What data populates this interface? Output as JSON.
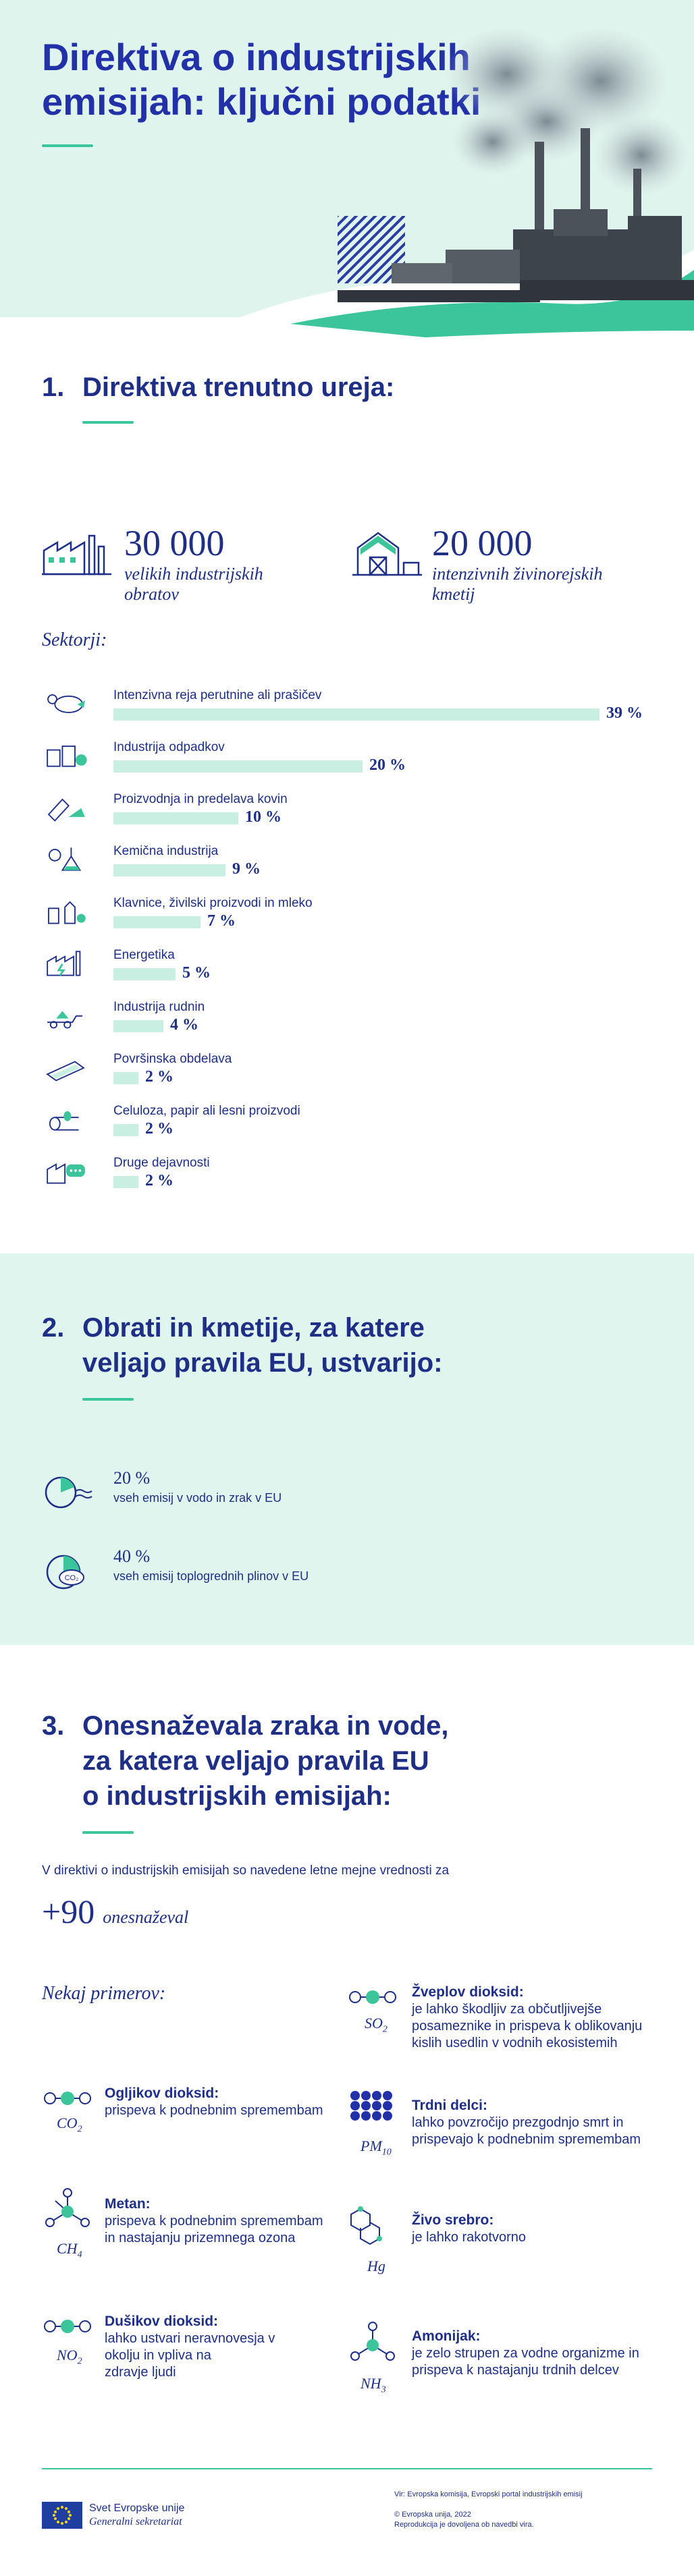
{
  "header": {
    "title_line1": "Direktiva o industrijskih",
    "title_line2": "emisijah: ključni podatki"
  },
  "section1": {
    "number": "1.",
    "heading": "Direktiva trenutno ureja:",
    "stat1": {
      "value": "30 000",
      "label_line1": "velikih industrijskih",
      "label_line2": "obratov",
      "icon": "factory-icon"
    },
    "stat2": {
      "value": "20 000",
      "label_line1": "intenzivnih živinorejskih",
      "label_line2": "kmetij",
      "icon": "barn-icon"
    },
    "sectors_title": "Sektorji:",
    "sectors": [
      {
        "label": "Intenzivna reja perutnine ali prašičev",
        "pct_text": "39 %",
        "value": 39,
        "icon": "livestock-icon"
      },
      {
        "label": "Industrija odpadkov",
        "pct_text": "20 %",
        "value": 20,
        "icon": "waste-icon"
      },
      {
        "label": "Proizvodnja in predelava kovin",
        "pct_text": "10 %",
        "value": 10,
        "icon": "metal-icon"
      },
      {
        "label": "Kemična industrija",
        "pct_text": "9 %",
        "value": 9,
        "icon": "chemistry-icon"
      },
      {
        "label": "Klavnice, živilski proizvodi in mleko",
        "pct_text": "7 %",
        "value": 7,
        "icon": "food-icon"
      },
      {
        "label": "Energetika",
        "pct_text": "5 %",
        "value": 5,
        "icon": "energy-icon"
      },
      {
        "label": "Industrija rudnin",
        "pct_text": "4 %",
        "value": 4,
        "icon": "mineral-icon"
      },
      {
        "label": "Površinska obdelava",
        "pct_text": "2 %",
        "value": 2,
        "icon": "surface-icon"
      },
      {
        "label": "Celuloza, papir ali lesni proizvodi",
        "pct_text": "2 %",
        "value": 2,
        "icon": "wood-icon"
      },
      {
        "label": "Druge dejavnosti",
        "pct_text": "2 %",
        "value": 2,
        "icon": "other-icon"
      }
    ]
  },
  "section2": {
    "number": "2.",
    "heading_line1": "Obrati in kmetije, za katere",
    "heading_line2": "veljajo pravila EU, ustvarijo:",
    "items": [
      {
        "pct": "20 %",
        "text": "vseh emisij v vodo in zrak v EU",
        "value": 20,
        "icon": "emissions-pie-icon"
      },
      {
        "pct": "40 %",
        "text": "vseh emisij toplogrednih plinov v EU",
        "value": 40,
        "icon": "co2-pie-icon",
        "icon_label": "CO₂"
      }
    ]
  },
  "section3": {
    "number": "3.",
    "heading_line1": "Onesnaževala zraka in vode,",
    "heading_line2": "za katera veljajo pravila EU",
    "heading_line3": "o industrijskih emisijah:",
    "intro": "V direktivi o industrijskih emisijah so navedene letne mejne vrednosti za",
    "count": "+90",
    "count_label": "onesnaževal",
    "examples_title": "Nekaj primerov:",
    "left": [
      {
        "name": "Ogljikov dioksid:",
        "desc": [
          "prispeva k podnebnim spremembam"
        ],
        "formula": "CO",
        "sub": "2"
      },
      {
        "name": "Metan:",
        "desc": [
          "prispeva k podnebnim spremembam",
          "in nastajanju prizemnega ozona"
        ],
        "formula": "CH",
        "sub": "4"
      },
      {
        "name": "Dušikov dioksid:",
        "desc": [
          "lahko ustvari neravnovesja v",
          "okolju in vpliva na",
          "zdravje ljudi"
        ],
        "formula": "NO",
        "sub": "2"
      }
    ],
    "right": [
      {
        "name": "Žveplov dioksid:",
        "desc": [
          "je lahko škodljiv za občutljivejše",
          "posameznike in prispeva k oblikovanju",
          "kislih usedlin v vodnih ekosistemih"
        ],
        "formula": "SO",
        "sub": "2"
      },
      {
        "name": "Trdni delci:",
        "desc": [
          "lahko povzročijo prezgodnjo smrt in",
          "prispevajo k podnebnim spremembam"
        ],
        "formula": "PM",
        "sub": "10"
      },
      {
        "name": "Živo srebro:",
        "desc": [
          "je lahko rakotvorno"
        ],
        "formula": "Hg",
        "sub": ""
      },
      {
        "name": "Amonijak:",
        "desc": [
          "je zelo strupen za vodne organizme in",
          "prispeva k nastajanju trdnih delcev"
        ],
        "formula": "NH",
        "sub": "3"
      }
    ]
  },
  "footer": {
    "org_line1": "Svet Evropske unije",
    "org_line2": "Generalni sekretariat",
    "source": "Vir: Evropska komisija, Evropski portal industrijskih emisij",
    "copyright": "© Evropska unija, 2022",
    "reproduction": "Reprodukcija je dovoljena ob navedbi vira."
  },
  "colors": {
    "navy": "#1f2f86",
    "teal": "#3cc49a",
    "mint": "#e0f5ee",
    "bar": "#c8efe1"
  }
}
